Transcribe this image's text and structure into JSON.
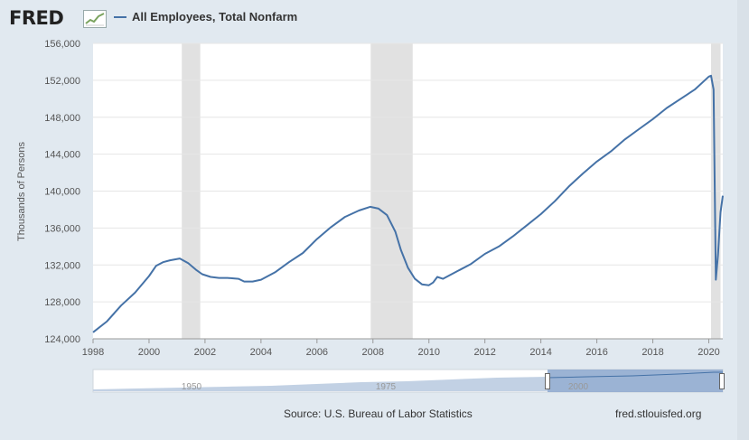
{
  "header": {
    "logo_text": "FRED",
    "logo_icon": "line-chart-icon",
    "series_title": "All Employees, Total Nonfarm",
    "series_color": "#4572a7"
  },
  "footer": {
    "source": "Source: U.S. Bureau of Labor Statistics",
    "site": "fred.stlouisfed.org"
  },
  "navigator": {
    "tick_labels": [
      "1950",
      "1975",
      "2000"
    ]
  },
  "chart_data": {
    "type": "line",
    "title": "",
    "xlabel": "",
    "ylabel": "Thousands of Persons",
    "xlim": [
      1998.0,
      2020.5
    ],
    "ylim": [
      124000,
      156000
    ],
    "x_ticks": [
      "1998",
      "2000",
      "2002",
      "2004",
      "2006",
      "2008",
      "2010",
      "2012",
      "2014",
      "2016",
      "2018",
      "2020"
    ],
    "y_ticks": [
      "124,000",
      "128,000",
      "132,000",
      "136,000",
      "140,000",
      "144,000",
      "148,000",
      "152,000",
      "156,000"
    ],
    "grid": true,
    "recessions": [
      [
        2001.17,
        2001.83
      ],
      [
        2007.92,
        2009.42
      ],
      [
        2020.08,
        2020.42
      ]
    ],
    "series": [
      {
        "name": "All Employees, Total Nonfarm",
        "color": "#4572a7",
        "points": [
          [
            1998.0,
            124700
          ],
          [
            1998.5,
            125900
          ],
          [
            1999.0,
            127600
          ],
          [
            1999.5,
            129000
          ],
          [
            2000.0,
            130800
          ],
          [
            2000.25,
            131900
          ],
          [
            2000.5,
            132300
          ],
          [
            2000.75,
            132500
          ],
          [
            2001.1,
            132700
          ],
          [
            2001.4,
            132200
          ],
          [
            2001.67,
            131500
          ],
          [
            2001.9,
            131000
          ],
          [
            2002.2,
            130700
          ],
          [
            2002.5,
            130600
          ],
          [
            2002.8,
            130600
          ],
          [
            2003.2,
            130500
          ],
          [
            2003.4,
            130200
          ],
          [
            2003.7,
            130200
          ],
          [
            2004.0,
            130400
          ],
          [
            2004.5,
            131200
          ],
          [
            2005.0,
            132300
          ],
          [
            2005.5,
            133300
          ],
          [
            2006.0,
            134800
          ],
          [
            2006.5,
            136100
          ],
          [
            2007.0,
            137200
          ],
          [
            2007.5,
            137900
          ],
          [
            2007.9,
            138300
          ],
          [
            2008.2,
            138100
          ],
          [
            2008.5,
            137400
          ],
          [
            2008.8,
            135600
          ],
          [
            2009.0,
            133600
          ],
          [
            2009.25,
            131700
          ],
          [
            2009.5,
            130500
          ],
          [
            2009.75,
            129900
          ],
          [
            2010.0,
            129800
          ],
          [
            2010.15,
            130100
          ],
          [
            2010.3,
            130700
          ],
          [
            2010.5,
            130500
          ],
          [
            2011.0,
            131300
          ],
          [
            2011.5,
            132100
          ],
          [
            2012.0,
            133200
          ],
          [
            2012.5,
            134000
          ],
          [
            2013.0,
            135100
          ],
          [
            2013.5,
            136300
          ],
          [
            2014.0,
            137500
          ],
          [
            2014.5,
            138900
          ],
          [
            2015.0,
            140500
          ],
          [
            2015.5,
            141900
          ],
          [
            2016.0,
            143200
          ],
          [
            2016.5,
            144300
          ],
          [
            2017.0,
            145600
          ],
          [
            2017.5,
            146700
          ],
          [
            2018.0,
            147800
          ],
          [
            2018.5,
            149000
          ],
          [
            2019.0,
            150000
          ],
          [
            2019.5,
            151000
          ],
          [
            2020.0,
            152400
          ],
          [
            2020.08,
            152500
          ],
          [
            2020.17,
            151000
          ],
          [
            2020.25,
            130400
          ],
          [
            2020.33,
            133100
          ],
          [
            2020.42,
            137700
          ],
          [
            2020.5,
            139500
          ]
        ]
      }
    ]
  }
}
